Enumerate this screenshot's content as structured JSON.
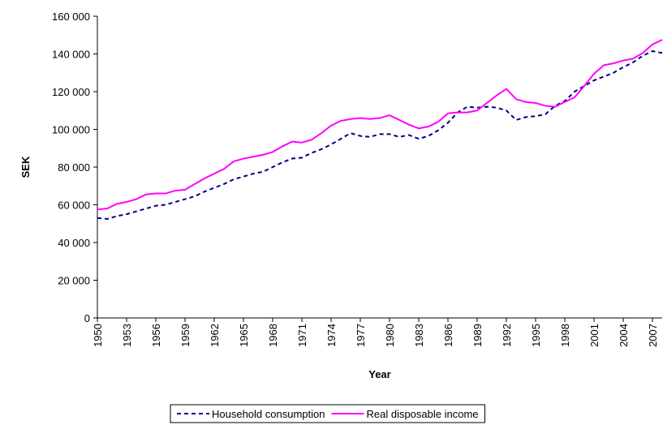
{
  "chart_data": {
    "type": "line",
    "x_label": "Year",
    "y_label": "SEK",
    "x": [
      1950,
      1951,
      1952,
      1953,
      1954,
      1955,
      1956,
      1957,
      1958,
      1959,
      1960,
      1961,
      1962,
      1963,
      1964,
      1965,
      1966,
      1967,
      1968,
      1969,
      1970,
      1971,
      1972,
      1973,
      1974,
      1975,
      1976,
      1977,
      1978,
      1979,
      1980,
      1981,
      1982,
      1983,
      1984,
      1985,
      1986,
      1987,
      1988,
      1989,
      1990,
      1991,
      1992,
      1993,
      1994,
      1995,
      1996,
      1997,
      1998,
      1999,
      2000,
      2001,
      2002,
      2003,
      2004,
      2005,
      2006,
      2007,
      2008
    ],
    "xlim": [
      1950,
      2008
    ],
    "xticks": [
      1950,
      1953,
      1956,
      1959,
      1962,
      1965,
      1968,
      1971,
      1974,
      1977,
      1980,
      1983,
      1986,
      1989,
      1992,
      1995,
      1998,
      2001,
      2004,
      2007
    ],
    "ylim": [
      0,
      160000
    ],
    "yticks": [
      0,
      {
        "value": 20000,
        "label": "20 000"
      },
      {
        "value": 40000,
        "label": "40 000"
      },
      {
        "value": 60000,
        "label": "60 000"
      },
      {
        "value": 80000,
        "label": "80 000"
      },
      {
        "value": 100000,
        "label": "100 000"
      },
      {
        "value": 120000,
        "label": "120 000"
      },
      {
        "value": 140000,
        "label": "140 000"
      },
      {
        "value": 160000,
        "label": "160 000"
      }
    ],
    "legend": "bottom",
    "series": [
      {
        "name": "Household consumption",
        "color": "#000080",
        "dashed": true,
        "values": [
          53000,
          52500,
          54000,
          55000,
          56500,
          58000,
          59500,
          60000,
          61500,
          63000,
          64500,
          67000,
          69000,
          71000,
          73500,
          75000,
          76500,
          77500,
          80000,
          82500,
          84500,
          85000,
          87500,
          89500,
          92000,
          95000,
          98000,
          96500,
          96000,
          97500,
          97500,
          96000,
          97000,
          95000,
          96500,
          99500,
          103500,
          109000,
          112000,
          111500,
          112000,
          111500,
          110000,
          105000,
          106500,
          107000,
          108000,
          112500,
          115000,
          120000,
          123000,
          126000,
          128000,
          130000,
          133000,
          135500,
          139000,
          141500,
          140500
        ]
      },
      {
        "name": "Real disposable income",
        "color": "#ff00ff",
        "dashed": false,
        "values": [
          57500,
          58000,
          60500,
          61500,
          63000,
          65500,
          66000,
          66000,
          67500,
          68000,
          71000,
          74000,
          76500,
          79000,
          83000,
          84500,
          85500,
          86500,
          88000,
          91000,
          93500,
          93000,
          94500,
          98000,
          102000,
          104500,
          105500,
          106000,
          105500,
          106000,
          107500,
          105000,
          102500,
          100500,
          101500,
          104000,
          108500,
          109000,
          109000,
          110000,
          114000,
          118000,
          121500,
          116000,
          114500,
          114000,
          112500,
          112000,
          114500,
          117000,
          123000,
          129500,
          134000,
          135000,
          136500,
          137500,
          140500,
          145000,
          147500
        ]
      }
    ]
  }
}
